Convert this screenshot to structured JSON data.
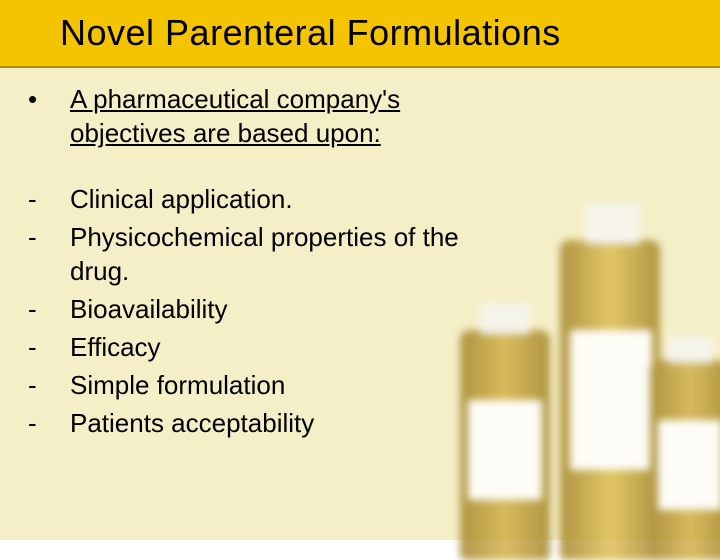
{
  "slide": {
    "title": "Novel Parenteral Formulations",
    "background_color": "#f5efc7",
    "header_color": "#f5c400",
    "header_border": "#b58e00",
    "title_fontsize": 36,
    "body_fontsize": 26,
    "text_color": "#000000",
    "intro": {
      "marker": "•",
      "text": "A pharmaceutical company's objectives are based upon:",
      "underlined": true
    },
    "items": [
      {
        "marker": "-",
        "text": "Clinical application."
      },
      {
        "marker": "-",
        "text": "Physicochemical properties of the drug."
      },
      {
        "marker": "-",
        "text": "Bioavailability"
      },
      {
        "marker": "-",
        "text": "Efficacy"
      },
      {
        "marker": "-",
        "text": "Simple formulation"
      },
      {
        "marker": "-",
        "text": "Patients acceptability"
      }
    ]
  }
}
